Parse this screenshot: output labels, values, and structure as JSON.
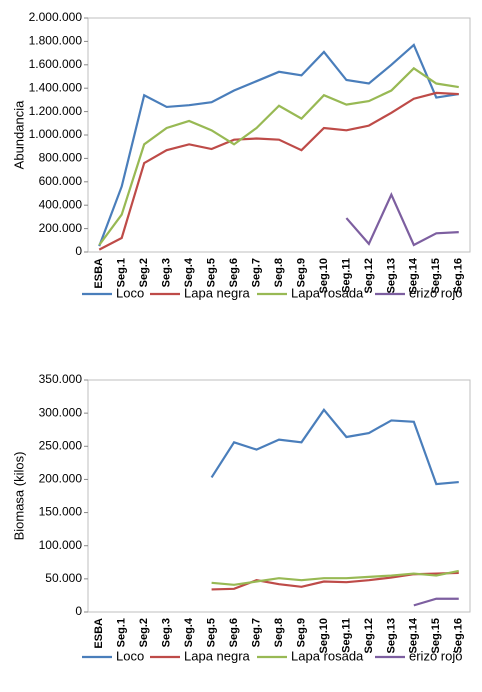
{
  "chart_data": [
    {
      "type": "line",
      "y_label": "Abundancia",
      "categories": [
        "ESBA",
        "Seg.1",
        "Seg.2",
        "Seg.3",
        "Seg.4",
        "Seg.5",
        "Seg.6",
        "Seg.7",
        "Seg.8",
        "Seg.9",
        "Seg.10",
        "Seg.11",
        "Seg.12",
        "Seg.13",
        "Seg.14",
        "Seg.15",
        "Seg.16"
      ],
      "ylim": [
        0,
        2000000
      ],
      "yticks": [
        0,
        {
          "value": 200000,
          "label": "200.000"
        },
        {
          "value": 400000,
          "label": "400.000"
        },
        {
          "value": 600000,
          "label": "600.000"
        },
        {
          "value": 800000,
          "label": "800.000"
        },
        {
          "value": 1000000,
          "label": "1.000.000"
        },
        {
          "value": 1200000,
          "label": "1.200.000"
        },
        {
          "value": 1400000,
          "label": "1.400.000"
        },
        {
          "value": 1600000,
          "label": "1.600.000"
        },
        {
          "value": 1800000,
          "label": "1.800.000"
        },
        {
          "value": 2000000,
          "label": "2.000.000"
        }
      ],
      "series": [
        {
          "name": "Loco",
          "color": "#4a7ebb",
          "values": [
            50000,
            560000,
            1340000,
            1240000,
            1255000,
            1280000,
            1380000,
            1460000,
            1540000,
            1510000,
            1710000,
            1470000,
            1440000,
            1600000,
            1770000,
            1320000,
            1350000
          ]
        },
        {
          "name": "Lapa negra",
          "color": "#be4b48",
          "values": [
            20000,
            120000,
            760000,
            870000,
            920000,
            880000,
            960000,
            970000,
            960000,
            870000,
            1060000,
            1040000,
            1080000,
            1190000,
            1310000,
            1360000,
            1350000
          ]
        },
        {
          "name": "Lapa rosada",
          "color": "#98b954",
          "values": [
            60000,
            320000,
            920000,
            1060000,
            1120000,
            1040000,
            920000,
            1060000,
            1250000,
            1140000,
            1340000,
            1260000,
            1290000,
            1380000,
            1570000,
            1440000,
            1410000
          ]
        },
        {
          "name": "erizo rojo",
          "color": "#7d5fa0",
          "values": [
            null,
            null,
            null,
            null,
            null,
            null,
            null,
            null,
            null,
            null,
            null,
            290000,
            70000,
            490000,
            60000,
            160000,
            170000
          ]
        }
      ]
    },
    {
      "type": "line",
      "y_label": "Biomasa (kilos)",
      "categories": [
        "ESBA",
        "Seg.1",
        "Seg.2",
        "Seg.3",
        "Seg.4",
        "Seg.5",
        "Seg.6",
        "Seg.7",
        "Seg.8",
        "Seg.9",
        "Seg.10",
        "Seg.11",
        "Seg.12",
        "Seg.13",
        "Seg.14",
        "Seg.15",
        "Seg.16"
      ],
      "ylim": [
        0,
        350000
      ],
      "yticks": [
        0,
        {
          "value": 50000,
          "label": "50.000"
        },
        {
          "value": 100000,
          "label": "100.000"
        },
        {
          "value": 150000,
          "label": "150.000"
        },
        {
          "value": 200000,
          "label": "200.000"
        },
        {
          "value": 250000,
          "label": "250.000"
        },
        {
          "value": 300000,
          "label": "300.000"
        },
        {
          "value": 350000,
          "label": "350.000"
        }
      ],
      "series": [
        {
          "name": "Loco",
          "color": "#4a7ebb",
          "values": [
            null,
            null,
            null,
            null,
            null,
            203000,
            256000,
            245000,
            260000,
            256000,
            305000,
            264000,
            270000,
            289000,
            287000,
            193000,
            196000
          ]
        },
        {
          "name": "Lapa negra",
          "color": "#be4b48",
          "values": [
            null,
            null,
            null,
            null,
            null,
            34000,
            35000,
            48000,
            42000,
            38000,
            46000,
            45000,
            48000,
            52000,
            57000,
            58000,
            59000
          ]
        },
        {
          "name": "Lapa rosada",
          "color": "#98b954",
          "values": [
            null,
            null,
            null,
            null,
            null,
            44000,
            41000,
            46000,
            51000,
            48000,
            51000,
            51000,
            53000,
            55000,
            58000,
            55000,
            62000
          ]
        },
        {
          "name": "erizo rojo",
          "color": "#7d5fa0",
          "values": [
            null,
            null,
            null,
            null,
            null,
            null,
            null,
            null,
            null,
            null,
            null,
            null,
            null,
            null,
            10000,
            20000,
            20000
          ]
        }
      ]
    }
  ]
}
